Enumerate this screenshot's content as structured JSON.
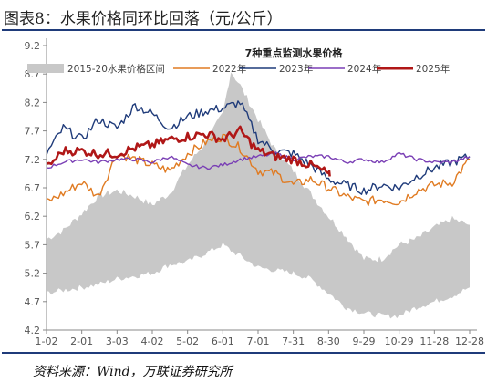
{
  "figure": {
    "title": "图表8：水果价格同环比回落（元/公斤）",
    "source": "资料来源：Wind，万联证券研究所"
  },
  "chart_data": {
    "type": "line",
    "title": "7种重点监测水果价格",
    "xlabel": "",
    "ylabel": "",
    "ylim": [
      4.2,
      9.2
    ],
    "y_ticks": [
      "9.2",
      "8.7",
      "8.2",
      "7.7",
      "7.2",
      "6.7",
      "6.2",
      "5.7",
      "5.2",
      "4.7",
      "4.2"
    ],
    "x_ticks": [
      "1-02",
      "2-01",
      "3-03",
      "4-02",
      "5-02",
      "6-01",
      "7-01",
      "7-31",
      "8-30",
      "9-29",
      "10-29",
      "11-28",
      "12-28"
    ],
    "grid": false,
    "legend_position": "top",
    "band": {
      "name": "2015-20水果价格区间",
      "color": "#c8c8c8",
      "x": [
        "1-02",
        "1-16",
        "2-01",
        "2-16",
        "3-03",
        "3-18",
        "4-02",
        "4-17",
        "5-02",
        "5-17",
        "6-01",
        "6-08",
        "6-16",
        "7-01",
        "7-16",
        "7-31",
        "8-15",
        "8-30",
        "9-14",
        "9-29",
        "10-14",
        "10-29",
        "11-13",
        "11-28",
        "12-13",
        "12-28"
      ],
      "upper": [
        5.8,
        5.95,
        6.25,
        6.55,
        6.65,
        6.55,
        6.4,
        6.6,
        7.1,
        7.5,
        8.0,
        8.75,
        8.5,
        7.9,
        7.35,
        7.0,
        6.6,
        6.2,
        5.85,
        5.45,
        5.45,
        5.7,
        5.8,
        6.0,
        6.15,
        6.05
      ],
      "lower": [
        4.85,
        4.9,
        4.95,
        5.0,
        5.1,
        5.15,
        5.2,
        5.35,
        5.4,
        5.55,
        5.7,
        5.6,
        5.5,
        5.3,
        5.25,
        5.2,
        5.1,
        4.85,
        4.6,
        4.5,
        4.45,
        4.45,
        4.6,
        4.7,
        4.8,
        4.95
      ]
    },
    "series": [
      {
        "name": "2022年",
        "color": "#e07b22",
        "x": [
          "1-02",
          "1-16",
          "2-01",
          "2-16",
          "3-03",
          "3-18",
          "4-02",
          "4-17",
          "5-02",
          "5-17",
          "6-01",
          "6-16",
          "7-01",
          "7-16",
          "7-31",
          "8-15",
          "8-30",
          "9-14",
          "9-29",
          "10-14",
          "10-29",
          "11-13",
          "11-28",
          "12-13",
          "12-28"
        ],
        "values": [
          6.45,
          6.6,
          6.8,
          6.55,
          7.3,
          7.2,
          7.1,
          7.0,
          7.3,
          7.5,
          7.6,
          7.4,
          7.0,
          6.95,
          6.75,
          6.85,
          6.7,
          6.55,
          6.45,
          6.5,
          6.45,
          6.65,
          6.75,
          6.8,
          7.2
        ]
      },
      {
        "name": "2023年",
        "color": "#1f3b7a",
        "x": [
          "1-02",
          "1-16",
          "2-01",
          "2-16",
          "3-03",
          "3-18",
          "4-02",
          "4-17",
          "5-02",
          "5-17",
          "6-01",
          "6-16",
          "7-01",
          "7-16",
          "7-31",
          "8-15",
          "8-30",
          "9-14",
          "9-29",
          "10-14",
          "10-29",
          "11-13",
          "11-28",
          "12-13",
          "12-28"
        ],
        "values": [
          7.3,
          7.75,
          7.55,
          7.9,
          7.75,
          8.15,
          8.0,
          7.75,
          7.95,
          8.05,
          8.1,
          8.2,
          7.55,
          7.35,
          7.3,
          7.1,
          6.85,
          6.75,
          6.65,
          6.75,
          6.7,
          6.9,
          7.05,
          7.15,
          7.25
        ]
      },
      {
        "name": "2024年",
        "color": "#7a3fb5",
        "x": [
          "1-02",
          "1-16",
          "2-01",
          "2-16",
          "3-03",
          "3-18",
          "4-02",
          "4-17",
          "5-02",
          "5-17",
          "6-01",
          "6-16",
          "7-01",
          "7-16",
          "7-31",
          "8-15",
          "8-30",
          "9-14",
          "9-29",
          "10-14",
          "10-29",
          "11-13",
          "11-28",
          "12-13",
          "12-28"
        ],
        "values": [
          7.05,
          7.15,
          7.2,
          7.15,
          7.2,
          7.2,
          7.15,
          7.25,
          7.1,
          7.05,
          7.1,
          7.2,
          7.25,
          7.3,
          7.2,
          7.25,
          7.25,
          7.15,
          7.2,
          7.15,
          7.3,
          7.2,
          7.15,
          7.15,
          7.25
        ]
      },
      {
        "name": "2025年",
        "color": "#b01717",
        "x": [
          "1-02",
          "1-16",
          "2-01",
          "2-16",
          "3-03",
          "3-18",
          "4-02",
          "4-17",
          "5-02",
          "5-17",
          "6-01",
          "6-16",
          "7-01",
          "7-16",
          "7-31",
          "8-15",
          "8-30",
          "8-31"
        ],
        "values": [
          7.05,
          7.35,
          7.35,
          7.3,
          7.3,
          7.4,
          7.45,
          7.55,
          7.6,
          7.65,
          7.55,
          7.7,
          7.35,
          7.25,
          7.2,
          7.1,
          6.95,
          6.9
        ]
      }
    ]
  }
}
